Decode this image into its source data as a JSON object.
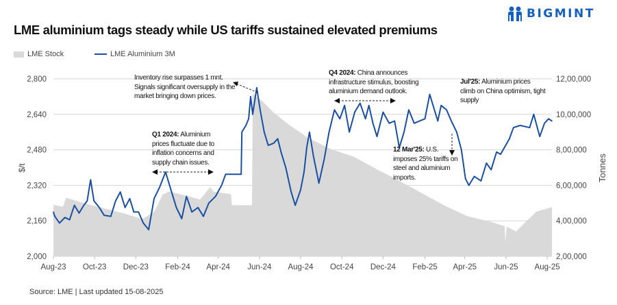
{
  "header": {
    "title": "LME aluminium tags steady while US tariffs sustained elevated premiums",
    "logo_text": "BIGMINT"
  },
  "footer": {
    "source": "Source: LME | Last updated 15-08-2025"
  },
  "annotations": {
    "inventory": "Inventory rise surpasses 1 mnt. Signals significant oversupply in the market bringing down prices.",
    "q1_bold": "Q1 2024:",
    "q1_text": " Aluminium prices fluctuate due to inflation concerns and supply chain issues.",
    "q4_bold": "Q4 2024:",
    "q4_text": " China announces infrastructure stimulus, boosting aluminium demand outlook.",
    "mar_bold": "12 Mar'25:",
    "mar_text": " U.S. imposes 25% tariffs on steel and aluminium imports.",
    "jul_bold": "Jul'25:",
    "jul_text": " Aluminium prices climb on China optimism, tight supply"
  },
  "colors": {
    "price_line": "#1a4fa0",
    "stock_area": "#d9d9d9",
    "logo": "#1560bd"
  },
  "chart_data": {
    "type": "line",
    "title": "LME aluminium tags steady while US tariffs sustained elevated premiums",
    "ylabel": "$/t",
    "y2label": "Tonnes",
    "ylim": [
      2000,
      2800
    ],
    "y2lim": [
      200000,
      1200000
    ],
    "yticks": [
      "2,000",
      "2,160",
      "2,320",
      "2,480",
      "2,640",
      "2,800"
    ],
    "y2ticks": [
      "2,00,000",
      "4,00,000",
      "6,00,000",
      "8,00,000",
      "10,00,000",
      "12,00,000"
    ],
    "xlim": [
      "2023-08-01",
      "2025-08-08"
    ],
    "xticks": [
      {
        "label": "Aug-23",
        "date": "2023-08-01"
      },
      {
        "label": "Oct-23",
        "date": "2023-10-01"
      },
      {
        "label": "Dec-23",
        "date": "2023-12-01"
      },
      {
        "label": "Feb-24",
        "date": "2024-02-01"
      },
      {
        "label": "Apr-24",
        "date": "2024-04-01"
      },
      {
        "label": "Jun-24",
        "date": "2024-06-01"
      },
      {
        "label": "Aug-24",
        "date": "2024-08-01"
      },
      {
        "label": "Oct-24",
        "date": "2024-10-01"
      },
      {
        "label": "Dec-24",
        "date": "2024-12-01"
      },
      {
        "label": "Feb-25",
        "date": "2025-02-01"
      },
      {
        "label": "Apr-25",
        "date": "2025-04-01"
      },
      {
        "label": "Jun-25",
        "date": "2025-06-01"
      },
      {
        "label": "Aug-25",
        "date": "2025-08-01"
      }
    ],
    "grid": true,
    "legend_position": "top-left",
    "series": [
      {
        "name": "LME Stock",
        "type": "area",
        "axis": "right",
        "points": [
          [
            "2023-08-01",
            490000
          ],
          [
            "2023-08-15",
            480000
          ],
          [
            "2023-08-20",
            530000
          ],
          [
            "2023-09-10",
            505000
          ],
          [
            "2023-10-15",
            470000
          ],
          [
            "2023-11-15",
            440000
          ],
          [
            "2023-12-10",
            410000
          ],
          [
            "2023-12-28",
            450000
          ],
          [
            "2024-01-10",
            550000
          ],
          [
            "2024-01-20",
            565000
          ],
          [
            "2024-02-15",
            540000
          ],
          [
            "2024-03-05",
            520000
          ],
          [
            "2024-03-20",
            590000
          ],
          [
            "2024-03-25",
            565000
          ],
          [
            "2024-04-20",
            550000
          ],
          [
            "2024-04-21",
            488000
          ],
          [
            "2024-05-21",
            488000
          ],
          [
            "2024-05-22",
            1115000
          ],
          [
            "2024-06-05",
            1075000
          ],
          [
            "2024-06-22",
            1010000
          ],
          [
            "2024-07-15",
            940000
          ],
          [
            "2024-08-11",
            870000
          ],
          [
            "2024-09-14",
            805000
          ],
          [
            "2024-10-19",
            761000
          ],
          [
            "2024-11-22",
            690000
          ],
          [
            "2024-12-25",
            625000
          ],
          [
            "2025-01-28",
            555000
          ],
          [
            "2025-03-03",
            484000
          ],
          [
            "2025-04-05",
            426000
          ],
          [
            "2025-05-10",
            394000
          ],
          [
            "2025-05-30",
            370000
          ],
          [
            "2025-05-31",
            280000
          ],
          [
            "2025-06-02",
            368000
          ],
          [
            "2025-06-16",
            340000
          ],
          [
            "2025-06-30",
            394000
          ],
          [
            "2025-07-16",
            452000
          ],
          [
            "2025-08-08",
            477000
          ]
        ]
      },
      {
        "name": "LME Aluminium 3M",
        "type": "line",
        "axis": "left",
        "points": [
          [
            "2023-08-01",
            2200
          ],
          [
            "2023-08-03",
            2180
          ],
          [
            "2023-08-10",
            2150
          ],
          [
            "2023-08-18",
            2175
          ],
          [
            "2023-08-25",
            2165
          ],
          [
            "2023-09-01",
            2230
          ],
          [
            "2023-09-08",
            2195
          ],
          [
            "2023-09-15",
            2230
          ],
          [
            "2023-09-20",
            2250
          ],
          [
            "2023-09-25",
            2345
          ],
          [
            "2023-09-30",
            2250
          ],
          [
            "2023-10-08",
            2220
          ],
          [
            "2023-10-15",
            2185
          ],
          [
            "2023-10-25",
            2180
          ],
          [
            "2023-11-01",
            2250
          ],
          [
            "2023-11-08",
            2290
          ],
          [
            "2023-11-15",
            2220
          ],
          [
            "2023-11-22",
            2260
          ],
          [
            "2023-11-28",
            2200
          ],
          [
            "2023-12-05",
            2200
          ],
          [
            "2023-12-12",
            2150
          ],
          [
            "2023-12-20",
            2120
          ],
          [
            "2023-12-28",
            2260
          ],
          [
            "2024-01-05",
            2310
          ],
          [
            "2024-01-14",
            2380
          ],
          [
            "2024-01-22",
            2300
          ],
          [
            "2024-01-30",
            2220
          ],
          [
            "2024-02-07",
            2170
          ],
          [
            "2024-02-14",
            2270
          ],
          [
            "2024-02-22",
            2200
          ],
          [
            "2024-03-02",
            2220
          ],
          [
            "2024-03-10",
            2180
          ],
          [
            "2024-03-18",
            2240
          ],
          [
            "2024-03-28",
            2270
          ],
          [
            "2024-04-06",
            2320
          ],
          [
            "2024-04-12",
            2370
          ],
          [
            "2024-05-05",
            2370
          ],
          [
            "2024-05-06",
            2560
          ],
          [
            "2024-05-12",
            2590
          ],
          [
            "2024-05-16",
            2620
          ],
          [
            "2024-05-19",
            2720
          ],
          [
            "2024-05-22",
            2640
          ],
          [
            "2024-05-28",
            2760
          ],
          [
            "2024-06-02",
            2660
          ],
          [
            "2024-06-08",
            2560
          ],
          [
            "2024-06-14",
            2500
          ],
          [
            "2024-06-22",
            2510
          ],
          [
            "2024-06-28",
            2530
          ],
          [
            "2024-07-03",
            2470
          ],
          [
            "2024-07-10",
            2400
          ],
          [
            "2024-07-18",
            2290
          ],
          [
            "2024-07-24",
            2230
          ],
          [
            "2024-08-01",
            2300
          ],
          [
            "2024-08-06",
            2380
          ],
          [
            "2024-08-10",
            2490
          ],
          [
            "2024-08-14",
            2560
          ],
          [
            "2024-08-20",
            2450
          ],
          [
            "2024-08-28",
            2330
          ],
          [
            "2024-09-05",
            2440
          ],
          [
            "2024-09-12",
            2560
          ],
          [
            "2024-09-20",
            2660
          ],
          [
            "2024-09-28",
            2620
          ],
          [
            "2024-10-05",
            2680
          ],
          [
            "2024-10-12",
            2560
          ],
          [
            "2024-10-20",
            2650
          ],
          [
            "2024-10-28",
            2690
          ],
          [
            "2024-11-05",
            2620
          ],
          [
            "2024-11-10",
            2680
          ],
          [
            "2024-11-16",
            2600
          ],
          [
            "2024-11-22",
            2540
          ],
          [
            "2024-12-01",
            2650
          ],
          [
            "2024-12-10",
            2600
          ],
          [
            "2024-12-18",
            2610
          ],
          [
            "2024-12-25",
            2490
          ],
          [
            "2025-01-01",
            2560
          ],
          [
            "2025-01-08",
            2660
          ],
          [
            "2025-01-16",
            2600
          ],
          [
            "2025-02-01",
            2620
          ],
          [
            "2025-02-08",
            2730
          ],
          [
            "2025-02-20",
            2610
          ],
          [
            "2025-02-25",
            2680
          ],
          [
            "2025-03-05",
            2660
          ],
          [
            "2025-03-12",
            2610
          ],
          [
            "2025-03-20",
            2560
          ],
          [
            "2025-03-27",
            2480
          ],
          [
            "2025-04-02",
            2350
          ],
          [
            "2025-04-07",
            2320
          ],
          [
            "2025-04-15",
            2360
          ],
          [
            "2025-04-25",
            2340
          ],
          [
            "2025-05-03",
            2420
          ],
          [
            "2025-05-10",
            2390
          ],
          [
            "2025-05-18",
            2470
          ],
          [
            "2025-05-24",
            2460
          ],
          [
            "2025-06-06",
            2530
          ],
          [
            "2025-06-12",
            2580
          ],
          [
            "2025-06-22",
            2590
          ],
          [
            "2025-07-06",
            2580
          ],
          [
            "2025-07-12",
            2640
          ],
          [
            "2025-07-21",
            2540
          ],
          [
            "2025-07-28",
            2600
          ],
          [
            "2025-08-03",
            2620
          ],
          [
            "2025-08-08",
            2610
          ]
        ]
      }
    ]
  }
}
